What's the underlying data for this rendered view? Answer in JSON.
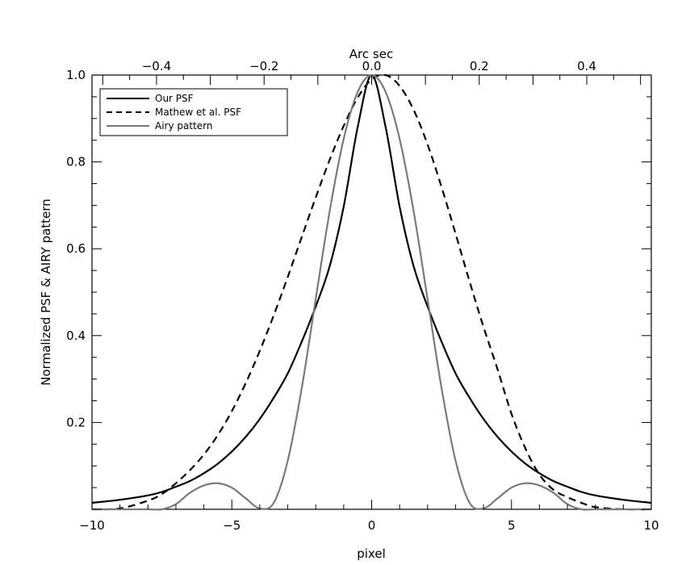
{
  "chart_data": {
    "type": "line",
    "xlabel": "pixel",
    "ylabel": "Normalized PSF & AIRY pattern",
    "top_axis_label": "Arc sec",
    "xlim": [
      -10,
      10
    ],
    "ylim": [
      0.0,
      1.0
    ],
    "top_xlim": [
      -0.52,
      0.52
    ],
    "x_ticks": [
      -10,
      -5,
      0,
      5,
      10
    ],
    "x_tick_labels": [
      "−10",
      "−5",
      "0",
      "5",
      "10"
    ],
    "top_ticks": [
      -0.4,
      -0.2,
      0.0,
      0.2,
      0.4
    ],
    "top_tick_labels": [
      "−0.4",
      "−0.2",
      "0.0",
      "0.2",
      "0.4"
    ],
    "y_ticks": [
      0.2,
      0.4,
      0.6,
      0.8,
      1.0
    ],
    "y_tick_labels": [
      "0.2",
      "0.4",
      "0.6",
      "0.8",
      "1.0"
    ],
    "grid": false,
    "legend_position": "top-left",
    "x": [
      -10,
      -9,
      -8,
      -7.5,
      -7,
      -6.5,
      -6,
      -5.5,
      -5,
      -4.5,
      -4,
      -3.5,
      -3,
      -2.5,
      -2,
      -1.5,
      -1,
      -0.5,
      0,
      0.5,
      1,
      1.5,
      2,
      2.5,
      3,
      3.5,
      4,
      4.5,
      5,
      5.5,
      6,
      6.5,
      7,
      7.5,
      8,
      9,
      10
    ],
    "series": [
      {
        "name": "Our PSF",
        "color": "#000000",
        "dash": "solid",
        "values": [
          0.015,
          0.022,
          0.032,
          0.04,
          0.052,
          0.065,
          0.083,
          0.105,
          0.133,
          0.167,
          0.208,
          0.257,
          0.313,
          0.386,
          0.467,
          0.56,
          0.697,
          0.88,
          1.0,
          0.88,
          0.697,
          0.56,
          0.467,
          0.386,
          0.313,
          0.257,
          0.208,
          0.167,
          0.133,
          0.105,
          0.083,
          0.065,
          0.052,
          0.04,
          0.032,
          0.022,
          0.015
        ]
      },
      {
        "name": "Mathew et al. PSF",
        "color": "#000000",
        "dash": "dashed",
        "values": [
          0.0,
          0.002,
          0.02,
          0.035,
          0.06,
          0.09,
          0.126,
          0.171,
          0.226,
          0.291,
          0.365,
          0.447,
          0.535,
          0.627,
          0.718,
          0.805,
          0.883,
          0.948,
          0.99,
          1.0,
          0.975,
          0.92,
          0.84,
          0.742,
          0.635,
          0.525,
          0.42,
          0.323,
          0.22,
          0.14,
          0.08,
          0.045,
          0.028,
          0.015,
          0.005,
          0.0,
          0.0
        ]
      },
      {
        "name": "Airy pattern",
        "color": "#7a7a7a",
        "dash": "solid",
        "values": [
          0.0,
          0.0,
          0.0,
          0.0,
          0.012,
          0.038,
          0.055,
          0.06,
          0.05,
          0.025,
          0.002,
          0.015,
          0.112,
          0.279,
          0.484,
          0.687,
          0.853,
          0.961,
          1.0,
          0.961,
          0.853,
          0.687,
          0.484,
          0.279,
          0.112,
          0.015,
          0.002,
          0.025,
          0.05,
          0.06,
          0.055,
          0.038,
          0.012,
          0.0,
          0.0,
          0.0,
          0.0
        ]
      }
    ]
  }
}
